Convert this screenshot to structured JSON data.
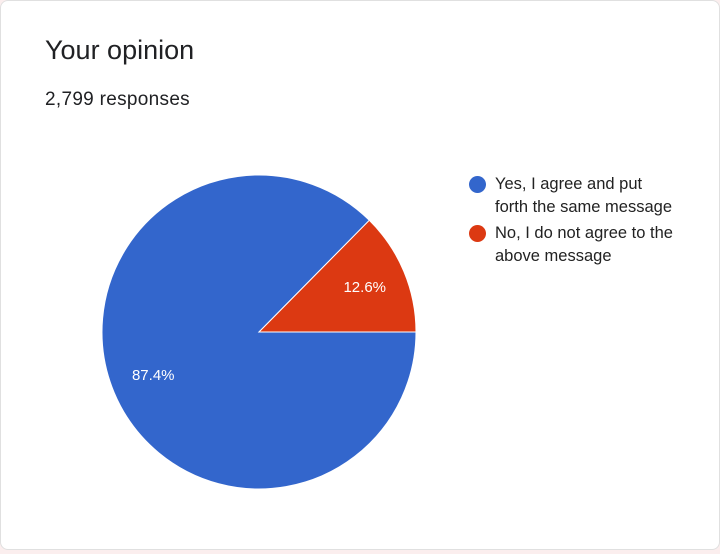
{
  "chart_data": {
    "type": "pie",
    "title": "Your opinion",
    "subtitle": "2,799 responses",
    "categories": [
      "Yes, I agree and put forth the same message",
      "No, I do not agree to the above message"
    ],
    "values": [
      87.4,
      12.6
    ],
    "value_labels": [
      "87.4%",
      "12.6%"
    ],
    "colors": [
      "#3366cc",
      "#dc3912"
    ]
  }
}
